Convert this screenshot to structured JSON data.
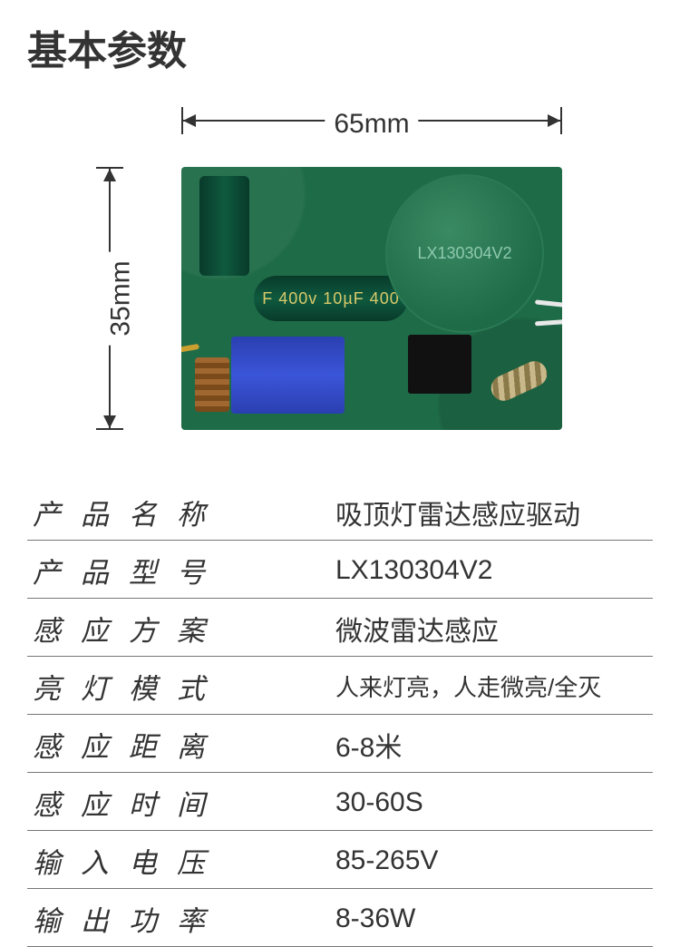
{
  "title": "基本参数",
  "dimensions": {
    "width_label": "65mm",
    "height_label": "35mm"
  },
  "pcb": {
    "cap_text": "F 400v 10µF 400",
    "sensor_text": "LX130304V2",
    "board_color": "#1e6b47",
    "transformer_color": "#3b55d9",
    "chip_color": "#111111"
  },
  "specs": [
    {
      "label": "产品名称",
      "value": "吸顶灯雷达感应驱动",
      "small": false
    },
    {
      "label": "产品型号",
      "value": "LX130304V2",
      "small": false
    },
    {
      "label": "感应方案",
      "value": "微波雷达感应",
      "small": false
    },
    {
      "label": "亮灯模式",
      "value": "人来灯亮，人走微亮/全灭",
      "small": true
    },
    {
      "label": "感应距离",
      "value": "6-8米",
      "small": false
    },
    {
      "label": "感应时间",
      "value": "30-60S",
      "small": false
    },
    {
      "label": "输入电压",
      "value": "85-265V",
      "small": false
    },
    {
      "label": "输出功率",
      "value": "8-36W",
      "small": false
    }
  ]
}
